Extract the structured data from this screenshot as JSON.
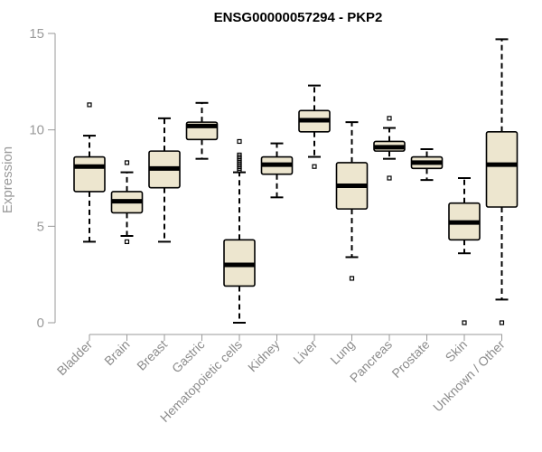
{
  "chart_data": {
    "type": "boxplot",
    "title": "ENSG00000057294 - PKP2",
    "xlabel": "",
    "ylabel": "Expression",
    "ylim": [
      0,
      15
    ],
    "yticks": [
      0,
      5,
      10,
      15
    ],
    "box_fill": "#ede6cf",
    "series": [
      {
        "category": "Bladder",
        "whisker_low": 4.2,
        "q1": 6.8,
        "median": 8.1,
        "q3": 8.6,
        "whisker_high": 9.7,
        "outliers": [
          11.3
        ]
      },
      {
        "category": "Brain",
        "whisker_low": 4.5,
        "q1": 5.7,
        "median": 6.3,
        "q3": 6.8,
        "whisker_high": 7.8,
        "outliers": [
          8.3,
          4.2
        ]
      },
      {
        "category": "Breast",
        "whisker_low": 4.2,
        "q1": 7.0,
        "median": 8.0,
        "q3": 8.9,
        "whisker_high": 10.6,
        "outliers": []
      },
      {
        "category": "Gastric",
        "whisker_low": 8.5,
        "q1": 9.5,
        "median": 10.2,
        "q3": 10.4,
        "whisker_high": 11.4,
        "outliers": []
      },
      {
        "category": "Hematopoietic cells",
        "whisker_low": 0.0,
        "q1": 1.9,
        "median": 3.0,
        "q3": 4.3,
        "whisker_high": 7.8,
        "outliers": [
          7.9,
          8.0,
          8.1,
          8.2,
          8.3,
          8.4,
          8.5,
          8.6,
          8.7,
          9.4
        ]
      },
      {
        "category": "Kidney",
        "whisker_low": 6.5,
        "q1": 7.7,
        "median": 8.2,
        "q3": 8.6,
        "whisker_high": 9.3,
        "outliers": []
      },
      {
        "category": "Liver",
        "whisker_low": 8.6,
        "q1": 9.9,
        "median": 10.5,
        "q3": 11.0,
        "whisker_high": 12.3,
        "outliers": [
          8.1
        ]
      },
      {
        "category": "Lung",
        "whisker_low": 3.4,
        "q1": 5.9,
        "median": 7.1,
        "q3": 8.3,
        "whisker_high": 10.4,
        "outliers": [
          2.3
        ]
      },
      {
        "category": "Pancreas",
        "whisker_low": 8.5,
        "q1": 8.9,
        "median": 9.1,
        "q3": 9.4,
        "whisker_high": 10.1,
        "outliers": [
          10.6,
          7.5
        ]
      },
      {
        "category": "Prostate",
        "whisker_low": 7.4,
        "q1": 8.0,
        "median": 8.3,
        "q3": 8.6,
        "whisker_high": 9.0,
        "outliers": []
      },
      {
        "category": "Skin",
        "whisker_low": 3.6,
        "q1": 4.3,
        "median": 5.2,
        "q3": 6.2,
        "whisker_high": 7.5,
        "outliers": [
          0.0
        ]
      },
      {
        "category": "Unknown / Other",
        "whisker_low": 1.2,
        "q1": 6.0,
        "median": 8.2,
        "q3": 9.9,
        "whisker_high": 14.7,
        "outliers": [
          0.0
        ]
      }
    ]
  }
}
